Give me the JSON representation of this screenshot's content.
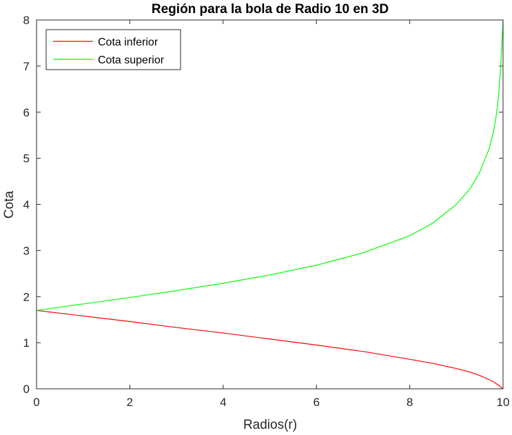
{
  "chart_data": {
    "type": "line",
    "title": "Región para la bola de Radio 10 en 3D",
    "xlabel": "Radios(r)",
    "ylabel": "Cota",
    "xlim": [
      0,
      10
    ],
    "ylim": [
      0,
      8
    ],
    "xticks": [
      "0",
      "2",
      "4",
      "6",
      "8",
      "10"
    ],
    "yticks": [
      "0",
      "1",
      "2",
      "3",
      "4",
      "5",
      "6",
      "7",
      "8"
    ],
    "grid": false,
    "legend_position": "top-left",
    "series": [
      {
        "name": "Cota inferior",
        "color": "#ff0000",
        "x": [
          0,
          1,
          2,
          3,
          4,
          5,
          6,
          7,
          8,
          8.5,
          9,
          9.3,
          9.5,
          9.7,
          9.8,
          9.9,
          9.95,
          10
        ],
        "y": [
          1.7,
          1.58,
          1.46,
          1.33,
          1.21,
          1.08,
          0.95,
          0.81,
          0.64,
          0.55,
          0.44,
          0.36,
          0.29,
          0.2,
          0.15,
          0.08,
          0.04,
          0.0
        ]
      },
      {
        "name": "Cota superior",
        "color": "#00ff00",
        "x": [
          0,
          1,
          2,
          3,
          4,
          5,
          6,
          7,
          8,
          8.5,
          9,
          9.3,
          9.5,
          9.7,
          9.8,
          9.85,
          9.9,
          9.95,
          10
        ],
        "y": [
          1.7,
          1.84,
          1.98,
          2.13,
          2.29,
          2.47,
          2.68,
          2.95,
          3.32,
          3.6,
          4.0,
          4.35,
          4.7,
          5.2,
          5.6,
          5.9,
          6.3,
          7.0,
          8.0
        ]
      }
    ]
  }
}
